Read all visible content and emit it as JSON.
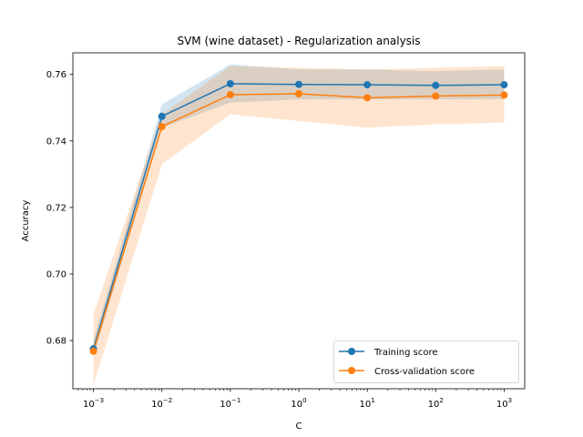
{
  "chart_data": {
    "type": "line",
    "title": "SVM (wine dataset) - Regularization analysis",
    "xlabel": "C",
    "ylabel": "Accuracy",
    "xscale": "log",
    "x": [
      0.001,
      0.01,
      0.1,
      1,
      10,
      100,
      1000
    ],
    "x_ticks": [
      0.001,
      0.01,
      0.1,
      1,
      10,
      100,
      1000
    ],
    "x_tick_base": "10",
    "x_tick_exponents": [
      "−3",
      "−2",
      "−1",
      "0",
      "1",
      "2",
      "3"
    ],
    "ylim": [
      0.6655,
      0.7665
    ],
    "y_ticks": [
      0.68,
      0.7,
      0.72,
      0.74,
      0.76
    ],
    "y_tick_labels": [
      "0.68",
      "0.70",
      "0.72",
      "0.74",
      "0.76"
    ],
    "grid": false,
    "legend_position": "lower-right",
    "series": [
      {
        "name": "Training score",
        "color": "#1f77b4",
        "values": [
          0.6775,
          0.7474,
          0.7572,
          0.757,
          0.7569,
          0.7567,
          0.7569
        ],
        "band_lower": [
          0.675,
          0.744,
          0.7515,
          0.7525,
          0.7525,
          0.7525,
          0.7525
        ],
        "band_upper": [
          0.68,
          0.751,
          0.763,
          0.7615,
          0.7615,
          0.761,
          0.7615
        ]
      },
      {
        "name": "Cross-validation score",
        "color": "#ff7f0e",
        "values": [
          0.6768,
          0.7443,
          0.7539,
          0.7542,
          0.753,
          0.7535,
          0.7538
        ],
        "band_lower": [
          0.6665,
          0.733,
          0.748,
          0.746,
          0.744,
          0.745,
          0.7455
        ],
        "band_upper": [
          0.688,
          0.748,
          0.7625,
          0.762,
          0.7615,
          0.762,
          0.7625
        ]
      }
    ]
  }
}
